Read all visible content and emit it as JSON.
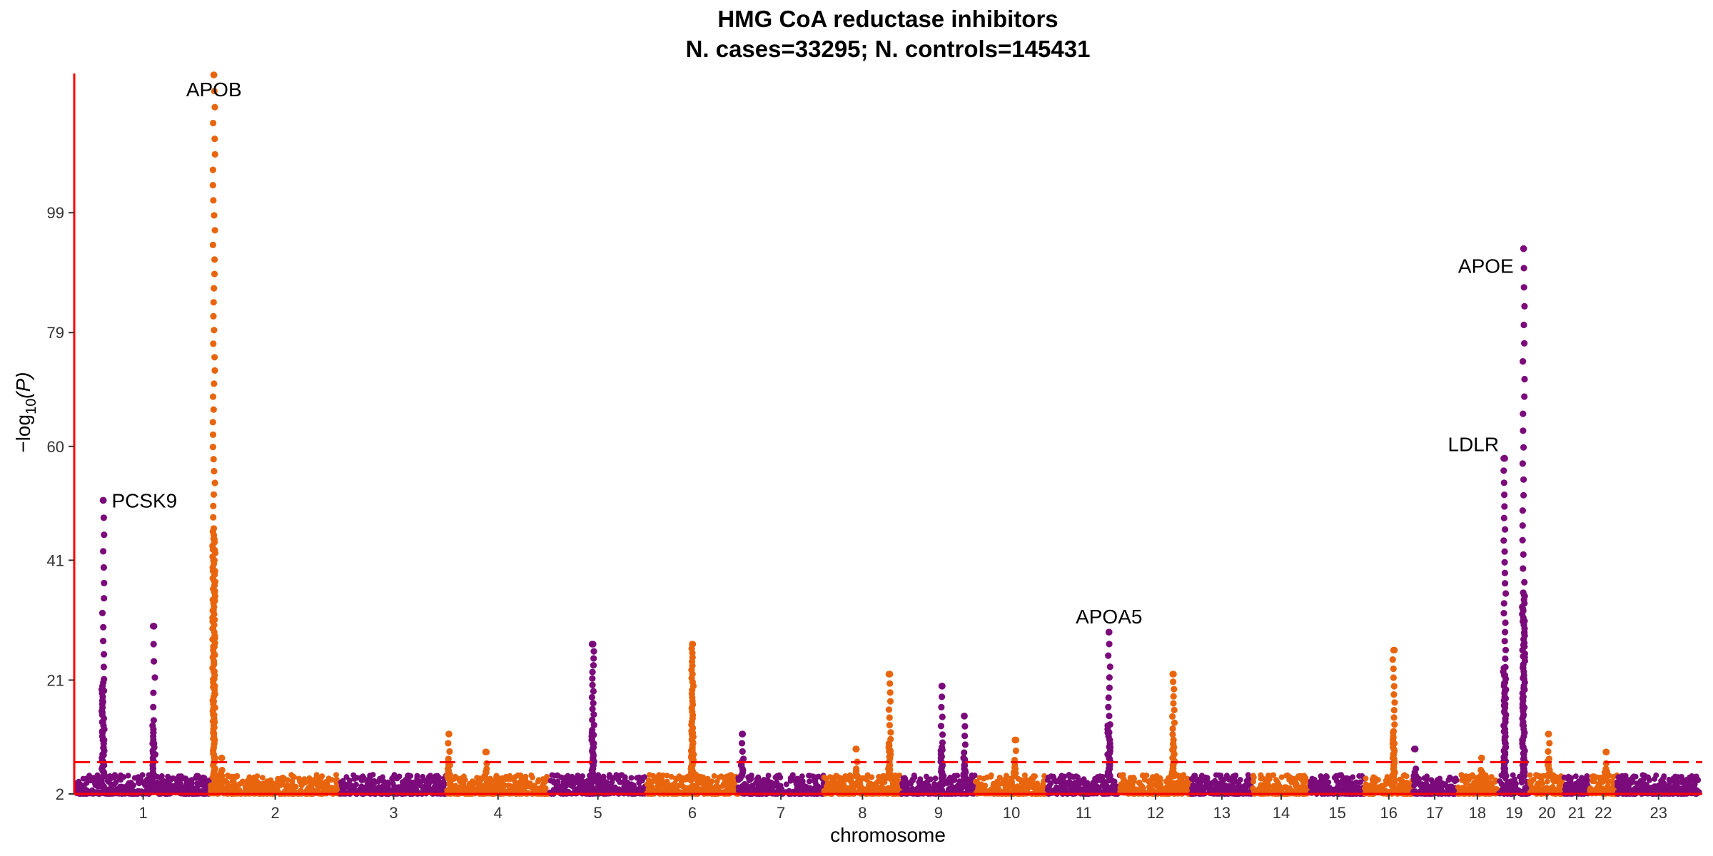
{
  "chart_data": {
    "type": "scatter",
    "title_line1": "HMG CoA reductase inhibitors",
    "title_line2": "N. cases=33295; N. controls=145431",
    "xlabel": "chromosome",
    "ylabel_prefix": "−log",
    "ylabel_sub": "10",
    "ylabel_suffix": "(P)",
    "ylim": [
      2,
      122
    ],
    "y_ticks": [
      2,
      21,
      41,
      60,
      79,
      99
    ],
    "significance_threshold": 7.3,
    "colors": {
      "odd": "#7B0A7B",
      "even": "#E8650E",
      "threshold": "#FF0000",
      "axis": "#FF0000"
    },
    "chromosomes": [
      {
        "label": "1",
        "length": 249,
        "peaks": [
          {
            "pos": 0.2,
            "max": 51,
            "n": 26
          },
          {
            "pos": 0.58,
            "max": 30,
            "n": 14
          }
        ]
      },
      {
        "label": "2",
        "length": 243,
        "peaks": [
          {
            "pos": 0.03,
            "max": 122,
            "n": 70
          },
          {
            "pos": 0.09,
            "max": 8,
            "n": 3
          }
        ]
      },
      {
        "label": "3",
        "length": 198,
        "peaks": []
      },
      {
        "label": "4",
        "length": 191,
        "peaks": [
          {
            "pos": 0.02,
            "max": 12,
            "n": 8
          },
          {
            "pos": 0.38,
            "max": 9,
            "n": 4
          }
        ]
      },
      {
        "label": "5",
        "length": 181,
        "peaks": [
          {
            "pos": 0.45,
            "max": 27,
            "n": 30
          }
        ]
      },
      {
        "label": "6",
        "length": 171,
        "peaks": [
          {
            "pos": 0.5,
            "max": 27,
            "n": 48
          }
        ]
      },
      {
        "label": "7",
        "length": 159,
        "peaks": [
          {
            "pos": 0.05,
            "max": 12,
            "n": 8
          }
        ]
      },
      {
        "label": "8",
        "length": 145,
        "peaks": [
          {
            "pos": 0.42,
            "max": 9.5,
            "n": 4
          },
          {
            "pos": 0.85,
            "max": 22,
            "n": 18
          }
        ]
      },
      {
        "label": "9",
        "length": 138,
        "peaks": [
          {
            "pos": 0.85,
            "max": 15,
            "n": 10
          },
          {
            "pos": 0.55,
            "max": 20,
            "n": 14
          }
        ]
      },
      {
        "label": "10",
        "length": 134,
        "peaks": [
          {
            "pos": 0.55,
            "max": 11,
            "n": 6
          }
        ]
      },
      {
        "label": "11",
        "length": 135,
        "peaks": [
          {
            "pos": 0.85,
            "max": 29,
            "n": 20
          }
        ]
      },
      {
        "label": "12",
        "length": 133,
        "peaks": [
          {
            "pos": 0.75,
            "max": 22,
            "n": 22
          }
        ]
      },
      {
        "label": "13",
        "length": 114,
        "peaks": []
      },
      {
        "label": "14",
        "length": 107,
        "peaks": []
      },
      {
        "label": "15",
        "length": 102,
        "peaks": []
      },
      {
        "label": "16",
        "length": 90,
        "peaks": [
          {
            "pos": 0.6,
            "max": 26,
            "n": 22
          }
        ]
      },
      {
        "label": "17",
        "length": 81,
        "peaks": [
          {
            "pos": 0.05,
            "max": 9.5,
            "n": 2
          }
        ]
      },
      {
        "label": "18",
        "length": 78,
        "peaks": [
          {
            "pos": 0.6,
            "max": 8,
            "n": 3
          }
        ]
      },
      {
        "label": "19",
        "length": 59,
        "peaks": [
          {
            "pos": 0.2,
            "max": 58,
            "n": 42
          },
          {
            "pos": 0.8,
            "max": 93,
            "n": 44
          }
        ]
      },
      {
        "label": "20",
        "length": 63,
        "peaks": [
          {
            "pos": 0.55,
            "max": 12,
            "n": 8
          }
        ]
      },
      {
        "label": "21",
        "length": 48,
        "peaks": []
      },
      {
        "label": "22",
        "length": 51,
        "peaks": [
          {
            "pos": 0.6,
            "max": 9,
            "n": 4
          }
        ]
      },
      {
        "label": "23",
        "length": 155,
        "peaks": []
      }
    ],
    "annotations": [
      {
        "label": "PCSK9",
        "chrom": 1,
        "pos": 0.2,
        "y": 51,
        "side": "right"
      },
      {
        "label": "APOB",
        "chrom": 2,
        "pos": 0.03,
        "y": 122,
        "side": "left-below"
      },
      {
        "label": "APOA5",
        "chrom": 11,
        "pos": 0.85,
        "y": 29,
        "side": "above"
      },
      {
        "label": "LDLR",
        "chrom": 19,
        "pos": 0.2,
        "y": 58,
        "side": "left-above"
      },
      {
        "label": "APOE",
        "chrom": 19,
        "pos": 0.8,
        "y": 93,
        "side": "left-below"
      }
    ]
  }
}
